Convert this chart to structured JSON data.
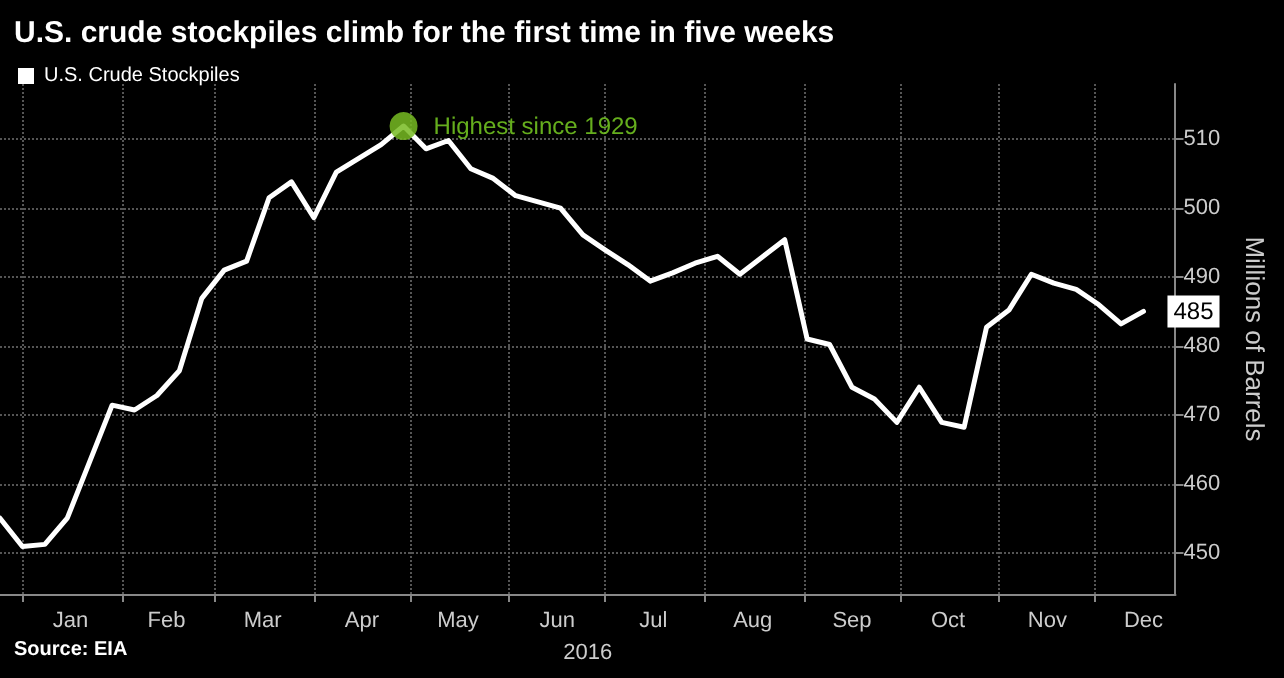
{
  "chart_data": {
    "type": "line",
    "title": "U.S. crude stockpiles climb for the first time in five weeks",
    "xlabel": "2016",
    "ylabel": "Millions of Barrels",
    "x": [
      "2015-12-25",
      "2016-01-01",
      "2016-01-08",
      "2016-01-15",
      "2016-01-22",
      "2016-01-29",
      "2016-02-05",
      "2016-02-12",
      "2016-02-19",
      "2016-02-26",
      "2016-03-04",
      "2016-03-11",
      "2016-03-18",
      "2016-03-25",
      "2016-04-01",
      "2016-04-08",
      "2016-04-15",
      "2016-04-22",
      "2016-04-29",
      "2016-05-06",
      "2016-05-13",
      "2016-05-20",
      "2016-05-27",
      "2016-06-03",
      "2016-06-10",
      "2016-06-17",
      "2016-06-24",
      "2016-07-01",
      "2016-07-08",
      "2016-07-15",
      "2016-07-22",
      "2016-07-29",
      "2016-08-05",
      "2016-08-12",
      "2016-08-19",
      "2016-08-26",
      "2016-09-02",
      "2016-09-09",
      "2016-09-16",
      "2016-09-23",
      "2016-09-30",
      "2016-10-07",
      "2016-10-14",
      "2016-10-21",
      "2016-10-28",
      "2016-11-04",
      "2016-11-11",
      "2016-11-18",
      "2016-11-25",
      "2016-12-02",
      "2016-12-09",
      "2016-12-16"
    ],
    "series": [
      {
        "name": "U.S. Crude Stockpiles",
        "color": "#ffffff",
        "values": [
          455.0,
          450.9,
          451.2,
          455.0,
          463.2,
          471.4,
          470.7,
          472.8,
          476.4,
          486.9,
          491.0,
          492.3,
          501.5,
          503.8,
          498.6,
          505.2,
          507.2,
          509.2,
          511.9,
          508.6,
          509.8,
          505.7,
          504.3,
          501.8,
          500.9,
          500.0,
          496.1,
          493.9,
          491.8,
          489.4,
          490.6,
          492.0,
          493.0,
          490.4,
          492.9,
          495.4,
          481.0,
          480.2,
          474.0,
          472.3,
          468.9,
          474.0,
          468.9,
          468.2,
          482.7,
          485.2,
          490.4,
          489.1,
          488.2,
          486.0,
          483.2,
          485
        ],
        "value_labels": [
          null,
          null,
          null,
          null,
          null,
          null,
          null,
          null,
          null,
          null,
          null,
          null,
          null,
          null,
          null,
          null,
          null,
          null,
          null,
          null,
          null,
          null,
          null,
          null,
          null,
          null,
          null,
          null,
          null,
          null,
          null,
          null,
          null,
          null,
          null,
          null,
          null,
          null,
          null,
          null,
          null,
          null,
          null,
          null,
          null,
          null,
          null,
          null,
          null,
          null,
          null,
          "485"
        ]
      }
    ],
    "xlim": [
      "2015-12-25",
      "2016-12-26"
    ],
    "xticks": [
      {
        "value": "2016-01-01",
        "label": null
      },
      {
        "value": "2016-01-16",
        "label": "Jan"
      },
      {
        "value": "2016-02-01",
        "label": null
      },
      {
        "value": "2016-02-15",
        "label": "Feb"
      },
      {
        "value": "2016-03-01",
        "label": null
      },
      {
        "value": "2016-03-16",
        "label": "Mar"
      },
      {
        "value": "2016-04-01",
        "label": null
      },
      {
        "value": "2016-04-16",
        "label": "Apr"
      },
      {
        "value": "2016-05-01",
        "label": null
      },
      {
        "value": "2016-05-16",
        "label": "May"
      },
      {
        "value": "2016-06-01",
        "label": null
      },
      {
        "value": "2016-06-16",
        "label": "Jun"
      },
      {
        "value": "2016-07-01",
        "label": null
      },
      {
        "value": "2016-07-16",
        "label": "Jul"
      },
      {
        "value": "2016-08-01",
        "label": null
      },
      {
        "value": "2016-08-16",
        "label": "Aug"
      },
      {
        "value": "2016-09-01",
        "label": null
      },
      {
        "value": "2016-09-16",
        "label": "Sep"
      },
      {
        "value": "2016-10-01",
        "label": null
      },
      {
        "value": "2016-10-16",
        "label": "Oct"
      },
      {
        "value": "2016-11-01",
        "label": null
      },
      {
        "value": "2016-11-16",
        "label": "Nov"
      },
      {
        "value": "2016-12-01",
        "label": null
      },
      {
        "value": "2016-12-16",
        "label": "Dec"
      }
    ],
    "ylim": [
      444,
      518
    ],
    "yticks": [
      450,
      460,
      470,
      480,
      490,
      500,
      510
    ],
    "grid": true,
    "legend": "top left",
    "marker": "none",
    "line_style": "solid",
    "annotations": [
      {
        "text": "Highest since 1929",
        "x": "2016-04-29",
        "y": 511.9
      },
      "Source: EIA"
    ]
  }
}
